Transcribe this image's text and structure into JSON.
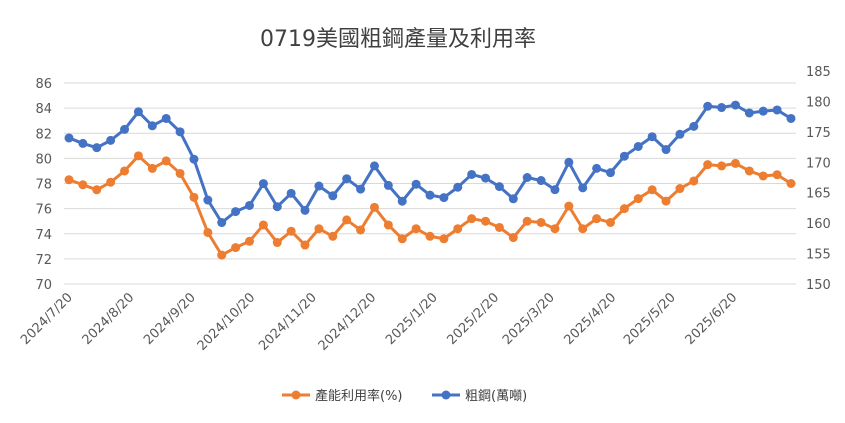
{
  "chart_data": {
    "type": "line",
    "title": "0719美國粗鋼產量及利用率",
    "xlabel": "",
    "ylabel": "",
    "x_tick_labels": [
      "2024/7/20",
      "2024/8/20",
      "2024/9/20",
      "2024/10/20",
      "2024/11/20",
      "2024/12/20",
      "2025/1/20",
      "2025/2/20",
      "2025/3/20",
      "2025/4/20",
      "2025/5/20",
      "2025/6/20"
    ],
    "x_tick_week_index": [
      0,
      4.43,
      8.86,
      13.14,
      17.57,
      21.86,
      26.29,
      30.71,
      34.71,
      39.14,
      43.43,
      47.86
    ],
    "y_left": {
      "lim": [
        70,
        86
      ],
      "ticks": [
        "70",
        "72",
        "74",
        "76",
        "78",
        "80",
        "82",
        "84",
        "86"
      ]
    },
    "y_right": {
      "lim": [
        150,
        185
      ],
      "ticks": [
        "150",
        "155",
        "160",
        "165",
        "170",
        "175",
        "180",
        "185"
      ]
    },
    "grid": true,
    "legend_position": "bottom",
    "series": [
      {
        "name": "產能利用率(%)",
        "axis": "left",
        "color": "#ED7D31",
        "values": [
          78.3,
          77.9,
          77.5,
          78.1,
          79.0,
          80.2,
          79.2,
          79.8,
          78.8,
          76.9,
          74.1,
          72.3,
          72.9,
          73.4,
          74.7,
          73.3,
          74.2,
          73.1,
          74.4,
          73.8,
          75.1,
          74.3,
          76.1,
          74.7,
          73.6,
          74.4,
          73.8,
          73.6,
          74.4,
          75.2,
          75.0,
          74.5,
          73.7,
          75.0,
          74.9,
          74.4,
          76.2,
          74.4,
          75.2,
          74.9,
          76.0,
          76.8,
          77.5,
          76.6,
          77.6,
          78.2,
          79.5,
          79.4,
          79.6,
          79.0,
          78.6,
          78.7,
          78.0
        ]
      },
      {
        "name": "粗鋼(萬噸)",
        "axis": "right",
        "color": "#4472C4",
        "values": [
          174.0,
          173.1,
          172.4,
          173.6,
          175.4,
          178.3,
          176.0,
          177.2,
          175.0,
          170.5,
          163.8,
          160.1,
          161.9,
          162.9,
          166.5,
          162.7,
          164.9,
          162.1,
          166.1,
          164.5,
          167.3,
          165.6,
          169.4,
          166.2,
          163.6,
          166.4,
          164.6,
          164.2,
          165.9,
          168.0,
          167.4,
          166.0,
          164.0,
          167.5,
          167.0,
          165.5,
          170.0,
          165.8,
          169.0,
          168.3,
          171.0,
          172.6,
          174.2,
          172.1,
          174.6,
          175.9,
          179.2,
          179.0,
          179.4,
          178.1,
          178.4,
          178.6,
          177.2
        ]
      }
    ]
  }
}
